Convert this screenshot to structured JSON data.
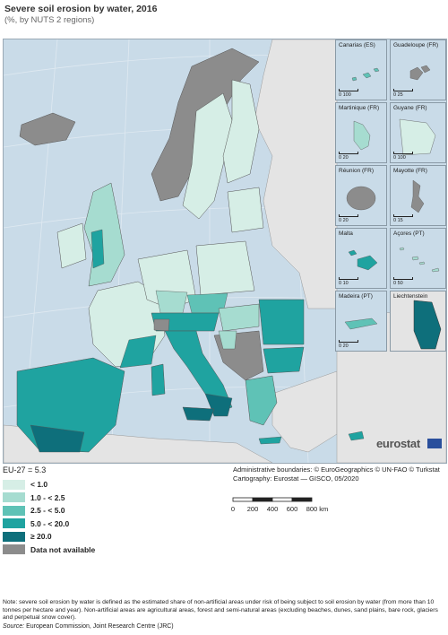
{
  "title": "Severe soil erosion by water, 2016",
  "subtitle": "(%, by NUTS 2 regions)",
  "eu_total": "EU-27 = 5.3",
  "legend": [
    {
      "label": "< 1.0",
      "color": "#d6eee6"
    },
    {
      "label": "1.0 - < 2.5",
      "color": "#a6dcd0"
    },
    {
      "label": "2.5 - < 5.0",
      "color": "#5fc2b6"
    },
    {
      "label": "5.0 - < 20.0",
      "color": "#1fa3a0"
    },
    {
      "label": "≥ 20.0",
      "color": "#0e6f7b"
    },
    {
      "label": "Data not available",
      "color": "#8c8c8c"
    }
  ],
  "colors": {
    "sea": "#c9dbe8",
    "non_eu_land": "#e4e4e4",
    "border": "#555555"
  },
  "insets": [
    {
      "name": "Canarias (ES)",
      "scale": "0   100"
    },
    {
      "name": "Guadeloupe (FR)",
      "scale": "0   25"
    },
    {
      "name": "Martinique (FR)",
      "scale": "0   20"
    },
    {
      "name": "Guyane (FR)",
      "scale": "0   100"
    },
    {
      "name": "Réunion (FR)",
      "scale": "0   20"
    },
    {
      "name": "Mayotte (FR)",
      "scale": "0   15"
    },
    {
      "name": "Malta",
      "scale": "0   10"
    },
    {
      "name": "Açores (PT)",
      "scale": "0   50"
    },
    {
      "name": "Madeira (PT)",
      "scale": "0   20"
    },
    {
      "name": "Liechtenstein",
      "scale": "0   5"
    }
  ],
  "credits": {
    "line1": "Administrative boundaries: © EuroGeographics © UN-FAO © Turkstat",
    "line2": "Cartography: Eurostat — GISCO, 05/2020"
  },
  "scale_labels": [
    "0",
    "200",
    "400",
    "600",
    "800 km"
  ],
  "logo_text": "eurostat",
  "note": "Note: severe soil erosion by water is defined as the estimated share of non-artificial areas under risk of being subject to soil erosion by water (from more than 10 tonnes per hectare and year). Non-artificial areas are agricultural areas, forest and semi-natural areas (excluding beaches, dunes, sand plains, bare rock, glaciers and perpetual snow cover).",
  "source_label": "Source:",
  "source_text": " European Commission, Joint Research Centre (JRC)"
}
